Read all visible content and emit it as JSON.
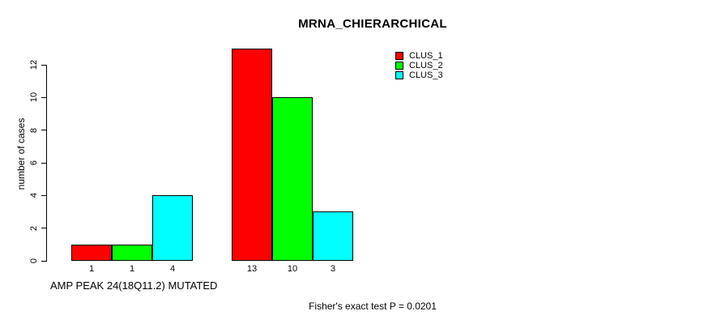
{
  "chart_data": {
    "type": "bar",
    "title": "MRNA_CHIERARCHICAL",
    "ylabel": "number of cases",
    "xlabel": "AMP PEAK 24(18Q11.2) MUTATED",
    "annotation": "Fisher's exact test P = 0.0201",
    "yticks": [
      0,
      2,
      4,
      6,
      8,
      10,
      12
    ],
    "ylim": [
      0,
      13
    ],
    "grid": false,
    "legend_position": "top-right",
    "groups": [
      {
        "bar_labels": [
          "1",
          "1",
          "4"
        ]
      },
      {
        "bar_labels": [
          "13",
          "10",
          "3"
        ]
      }
    ],
    "series": [
      {
        "name": "CLUS_1",
        "color": "#FF0000",
        "values": [
          1,
          13
        ]
      },
      {
        "name": "CLUS_2",
        "color": "#00FF00",
        "values": [
          1,
          10
        ]
      },
      {
        "name": "CLUS_3",
        "color": "#00FFFF",
        "values": [
          4,
          3
        ]
      }
    ],
    "colors": {
      "bar_border": "#000000",
      "text": "#000000",
      "background": "#FFFFFF"
    }
  }
}
